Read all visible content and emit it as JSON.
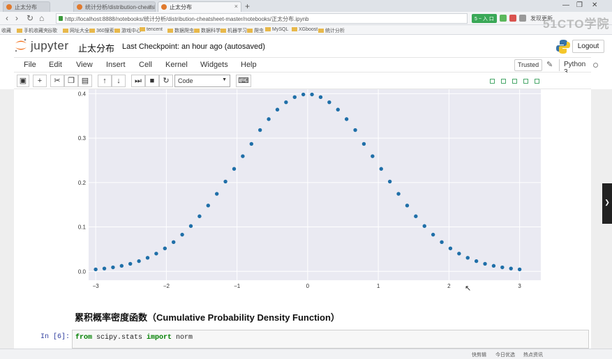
{
  "browser": {
    "tabs": [
      {
        "label": "止太分布"
      },
      {
        "label": "统计分析/distribution-cheatsh"
      },
      {
        "label": "止太分布"
      }
    ],
    "new_tab": "+",
    "url": "http://localhost:8888/notebooks/统计分析/distribution-cheatsheet-master/notebooks/正太分布.ipynb",
    "green_button": "5 \t ~ \t \t \t 入 口",
    "right_text": "发现更新",
    "bookmarks": [
      "收藏",
      "手机收藏夹",
      "谷歌",
      "网址大全",
      "360搜索",
      "游戏中心",
      "tencent",
      "数据爬虫",
      "数据科学",
      "机器学习",
      "爬虫",
      "MySQL",
      "XGboost",
      "统计分析"
    ]
  },
  "watermark": {
    "text": "51CTO学院",
    "sub": "中"
  },
  "jupyter": {
    "logo_text": "jupyter",
    "notebook_title": "止太分布",
    "checkpoint": "Last Checkpoint: an hour ago (autosaved)",
    "logout_label": "Logout",
    "menu": [
      "File",
      "Edit",
      "View",
      "Insert",
      "Cell",
      "Kernel",
      "Widgets",
      "Help"
    ],
    "trusted_label": "Trusted",
    "kernel_label": "Python 3",
    "cell_type": "Code"
  },
  "chart_data": {
    "type": "scatter",
    "title": "",
    "xlabel": "",
    "ylabel": "",
    "xlim": [
      -3.1,
      3.3
    ],
    "ylim": [
      -0.02,
      0.41
    ],
    "xticks": [
      "−3",
      "−2",
      "−1",
      "0",
      "1",
      "2",
      "3"
    ],
    "xtick_values": [
      -3,
      -2,
      -1,
      0,
      1,
      2,
      3
    ],
    "yticks": [
      "0.0",
      "0.1",
      "0.2",
      "0.3",
      "0.4"
    ],
    "ytick_values": [
      0.0,
      0.1,
      0.2,
      0.3,
      0.4
    ],
    "grid": true,
    "marker_color": "#1f6fa8",
    "series": [
      {
        "x": [
          -3.0,
          -2.877551,
          -2.755102,
          -2.632653,
          -2.510204,
          -2.387755,
          -2.265306,
          -2.142857,
          -2.020408,
          -1.897959,
          -1.77551,
          -1.653061,
          -1.530612,
          -1.408163,
          -1.285714,
          -1.163265,
          -1.040816,
          -0.918367,
          -0.795918,
          -0.673469,
          -0.55102,
          -0.428571,
          -0.306122,
          -0.183673,
          -0.061224,
          0.061224,
          0.183673,
          0.306122,
          0.428571,
          0.55102,
          0.673469,
          0.795918,
          0.918367,
          1.040816,
          1.163265,
          1.285714,
          1.408163,
          1.530612,
          1.653061,
          1.77551,
          1.897959,
          2.020408,
          2.142857,
          2.265306,
          2.387755,
          2.510204,
          2.632653,
          2.755102,
          2.877551,
          3.0
        ],
        "y": [
          0.0044,
          0.0064,
          0.009,
          0.0124,
          0.017,
          0.023,
          0.0305,
          0.04,
          0.0517,
          0.0658,
          0.0826,
          0.102,
          0.124,
          0.1482,
          0.1745,
          0.2022,
          0.2307,
          0.2592,
          0.2869,
          0.3181,
          0.3427,
          0.3641,
          0.3807,
          0.3922,
          0.3982,
          0.3982,
          0.3922,
          0.3807,
          0.3641,
          0.3427,
          0.3181,
          0.2869,
          0.2592,
          0.2307,
          0.2022,
          0.1745,
          0.1482,
          0.124,
          0.102,
          0.0826,
          0.0658,
          0.0517,
          0.04,
          0.0305,
          0.023,
          0.017,
          0.0124,
          0.009,
          0.0064,
          0.0044
        ]
      }
    ]
  },
  "markdown_heading": "累积概率密度函数（Cumulative Probability Density Function）",
  "code_cell": {
    "prompt": "In [6]:",
    "kw_from": "from",
    "module": " scipy.stats ",
    "kw_import": "import",
    "name": " norm"
  },
  "statusbar": [
    "快剪辑",
    "今日优选",
    "热点资讯"
  ],
  "side_tab": "❯"
}
